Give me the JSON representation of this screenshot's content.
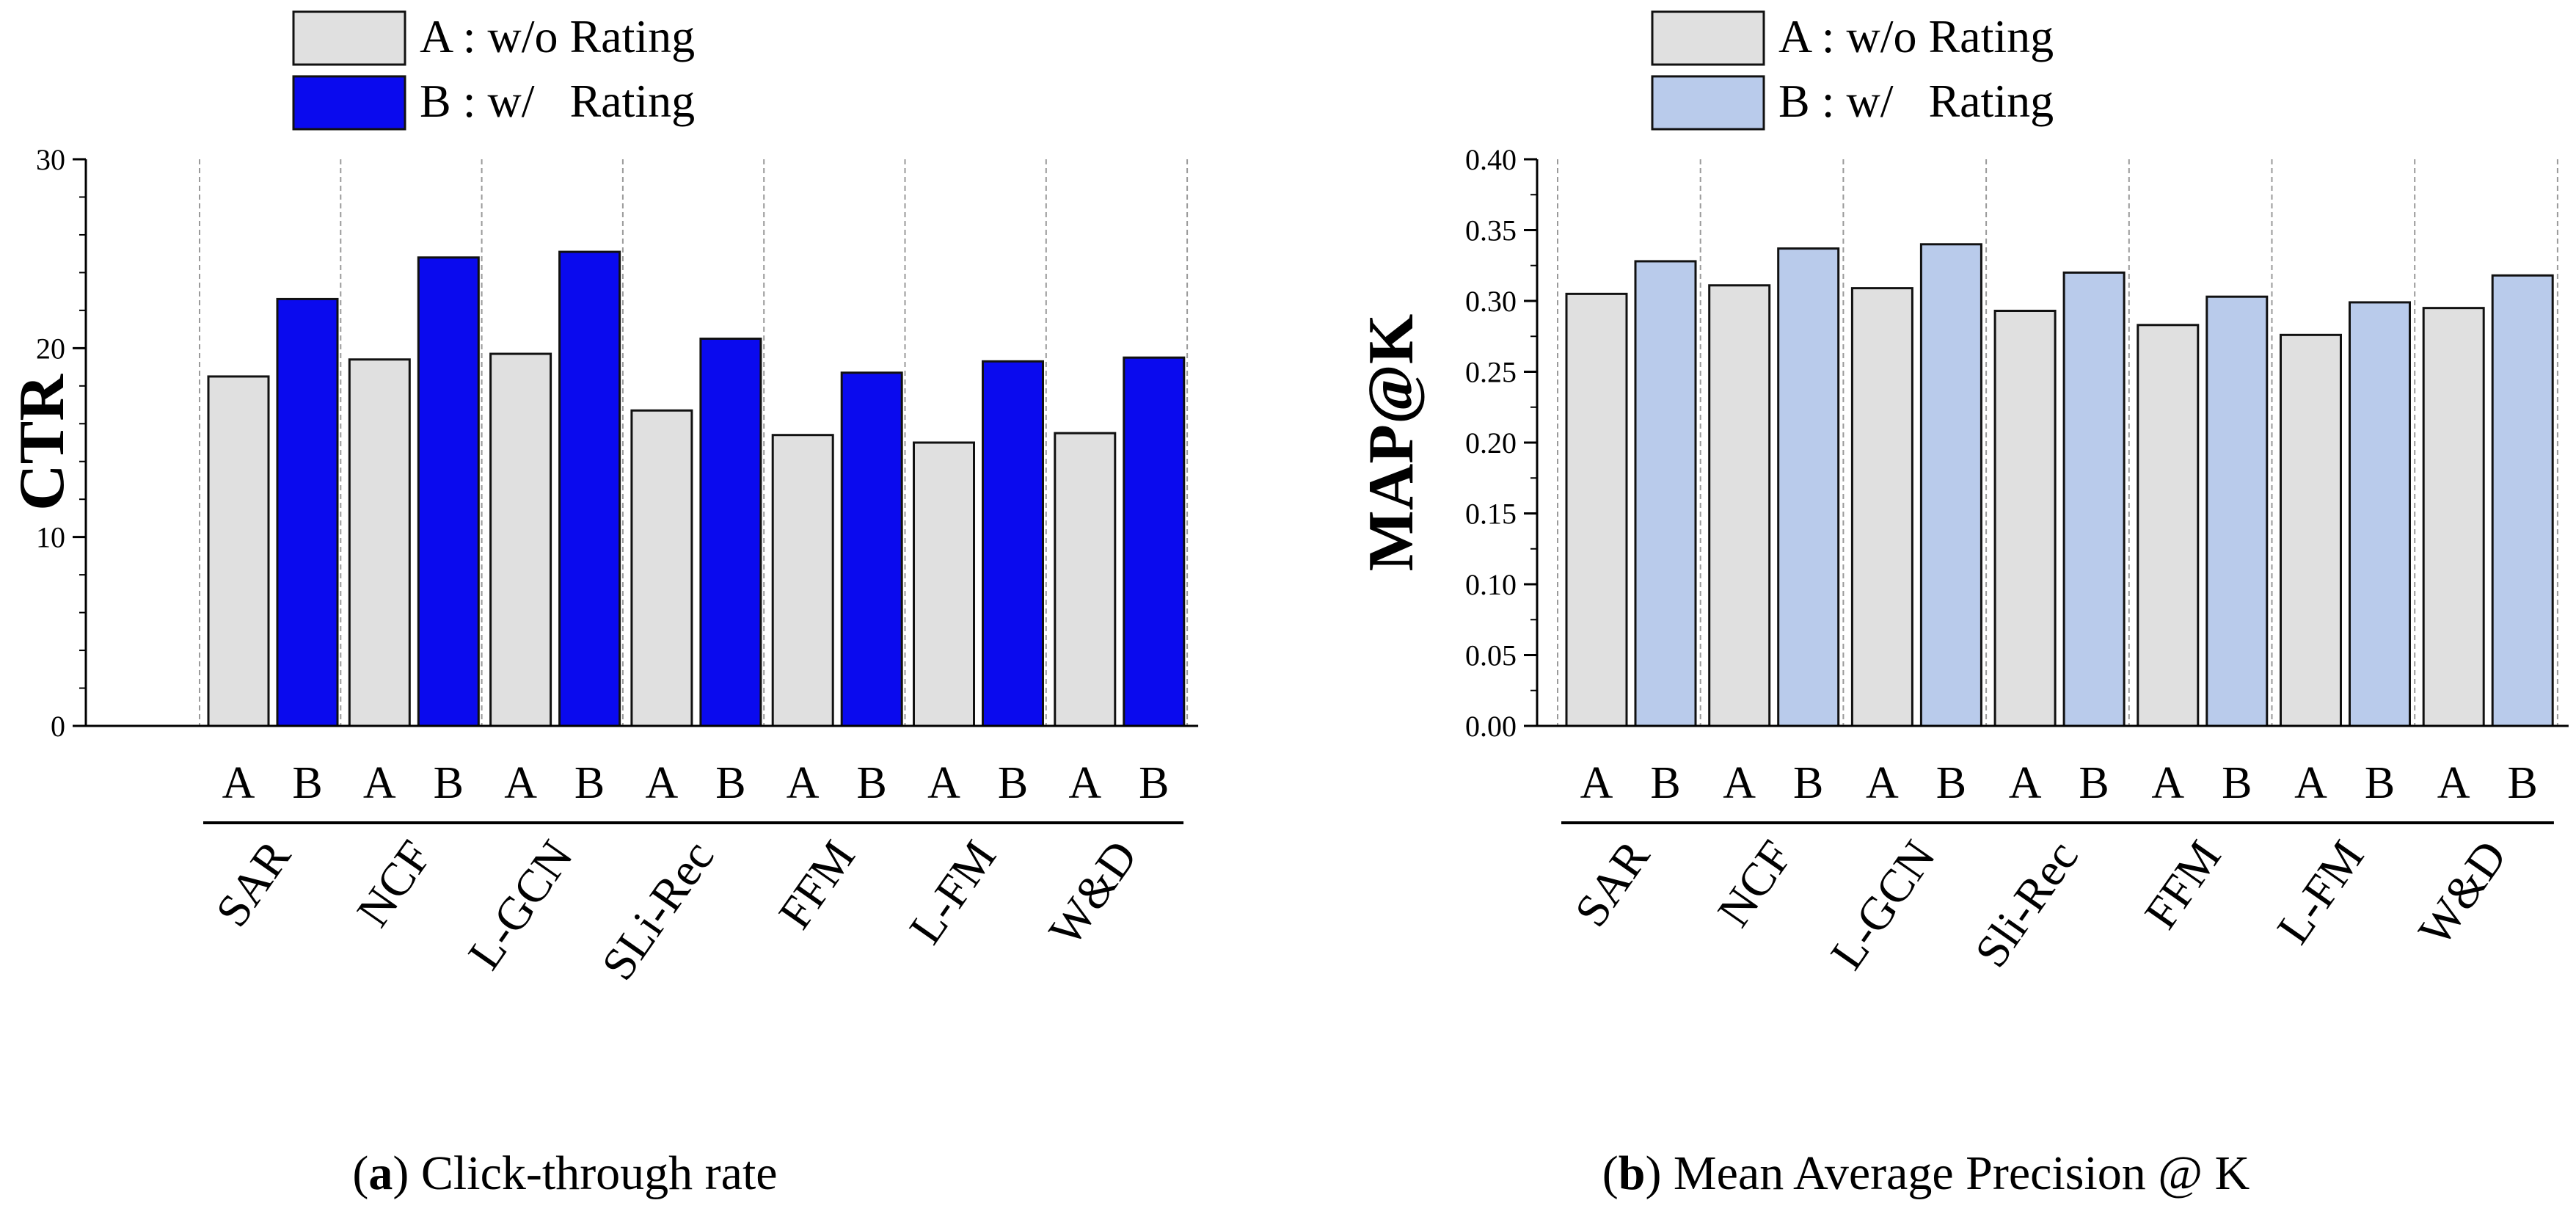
{
  "chart_data": [
    {
      "type": "bar",
      "panel": "a",
      "caption_label": "a",
      "caption_text": " Click-through rate",
      "ylabel": "CTR",
      "ylim": [
        0,
        30
      ],
      "yticks": [
        0,
        10,
        20,
        30
      ],
      "ytick_labels": [
        "0",
        "10",
        "20",
        "30"
      ],
      "minor_step": 2,
      "categories": [
        "SAR",
        "NCF",
        "L-GCN",
        "SLi-Rec",
        "FFM",
        "L-FM",
        "W&D"
      ],
      "bar_labels": [
        "A",
        "B"
      ],
      "series": [
        {
          "name": "A : w/o Rating",
          "color": "#e0e0e0",
          "values": [
            18.5,
            19.4,
            19.7,
            16.7,
            15.4,
            15.0,
            15.5
          ]
        },
        {
          "name": "B : w/   Rating",
          "color": "#0a0aee",
          "values": [
            22.6,
            24.8,
            25.1,
            20.5,
            18.7,
            19.3,
            19.5
          ]
        }
      ],
      "legend": "top"
    },
    {
      "type": "bar",
      "panel": "b",
      "caption_label": "b",
      "caption_text": " Mean Average Precision @ K",
      "ylabel": "MAP@K",
      "ylim": [
        0,
        0.4
      ],
      "yticks": [
        0,
        0.05,
        0.1,
        0.15,
        0.2,
        0.25,
        0.3,
        0.35,
        0.4
      ],
      "ytick_labels": [
        "0.00",
        "0.05",
        "0.10",
        "0.15",
        "0.20",
        "0.25",
        "0.30",
        "0.35",
        "0.40"
      ],
      "minor_step": 0.025,
      "categories": [
        "SAR",
        "NCF",
        "L-GCN",
        "Sli-Rec",
        "FFM",
        "L-FM",
        "W&D"
      ],
      "bar_labels": [
        "A",
        "B"
      ],
      "series": [
        {
          "name": "A : w/o Rating",
          "color": "#e0e0e0",
          "values": [
            0.305,
            0.311,
            0.309,
            0.293,
            0.283,
            0.276,
            0.295
          ]
        },
        {
          "name": "B : w/   Rating",
          "color": "#b9cbeb",
          "values": [
            0.328,
            0.337,
            0.34,
            0.32,
            0.303,
            0.299,
            0.318
          ]
        }
      ],
      "legend": "top"
    }
  ]
}
